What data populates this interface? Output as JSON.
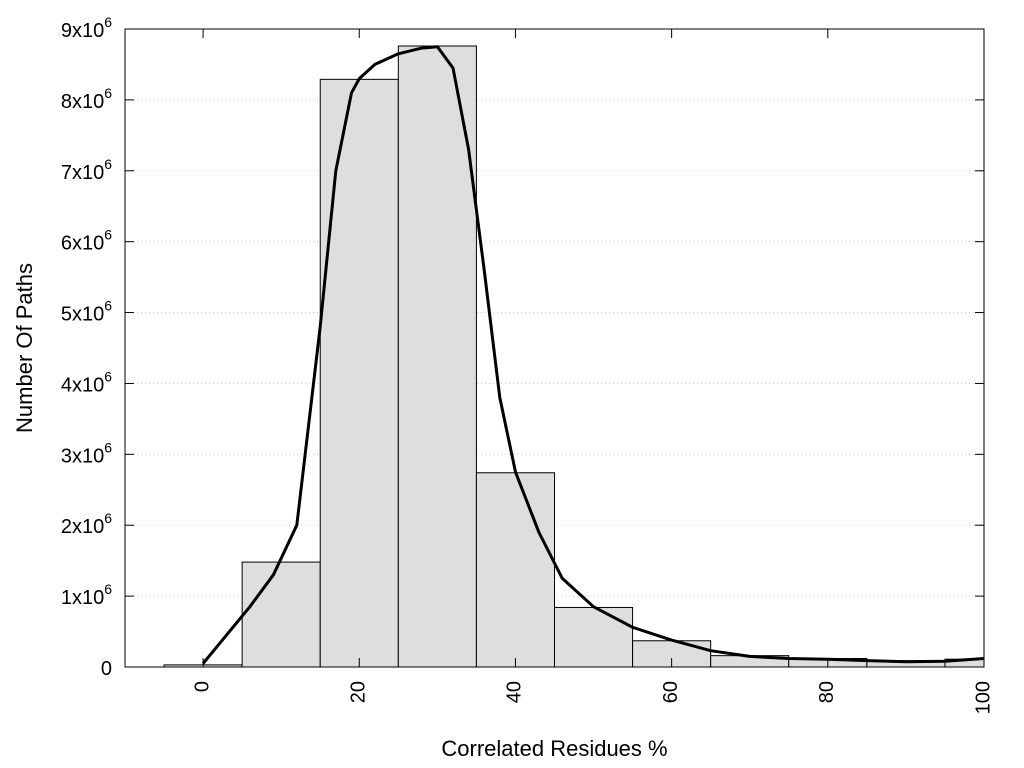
{
  "chart_data": {
    "type": "bar",
    "xlabel": "Correlated Residues %",
    "ylabel": "Number Of Paths",
    "xlim": [
      -10,
      100
    ],
    "ylim": [
      0,
      9000000
    ],
    "grid": true,
    "bins": [
      {
        "center": 0,
        "width": 10,
        "value": 30000
      },
      {
        "center": 10,
        "width": 10,
        "value": 1480000
      },
      {
        "center": 20,
        "width": 10,
        "value": 8290000
      },
      {
        "center": 30,
        "width": 10,
        "value": 8760000
      },
      {
        "center": 40,
        "width": 10,
        "value": 2740000
      },
      {
        "center": 50,
        "width": 10,
        "value": 840000
      },
      {
        "center": 60,
        "width": 10,
        "value": 370000
      },
      {
        "center": 70,
        "width": 10,
        "value": 160000
      },
      {
        "center": 80,
        "width": 10,
        "value": 120000
      },
      {
        "center": 90,
        "width": 10,
        "value": 90000
      },
      {
        "center": 100,
        "width": 10,
        "value": 110000
      }
    ],
    "curve": {
      "x": [
        0,
        3,
        6,
        9,
        12,
        15,
        17,
        19,
        20,
        22,
        25,
        28,
        30,
        32,
        34,
        36,
        38,
        40,
        43,
        46,
        50,
        55,
        60,
        65,
        70,
        75,
        80,
        85,
        90,
        95,
        100
      ],
      "y": [
        50000,
        450000,
        850000,
        1300000,
        2000000,
        4800000,
        7000000,
        8100000,
        8300000,
        8500000,
        8650000,
        8730000,
        8750000,
        8450000,
        7300000,
        5600000,
        3800000,
        2750000,
        1900000,
        1250000,
        850000,
        560000,
        380000,
        230000,
        150000,
        120000,
        110000,
        90000,
        75000,
        80000,
        120000
      ]
    },
    "xticks": [
      0,
      20,
      40,
      60,
      80,
      100
    ],
    "xtick_labels": [
      "0",
      "20",
      "40",
      "60",
      "80",
      "100"
    ],
    "yticks": [
      0,
      1000000,
      2000000,
      3000000,
      4000000,
      5000000,
      6000000,
      7000000,
      8000000,
      9000000
    ],
    "ytick_labels": [
      {
        "base": "0",
        "sup": ""
      },
      {
        "base": "1x10",
        "sup": "6"
      },
      {
        "base": "2x10",
        "sup": "6"
      },
      {
        "base": "3x10",
        "sup": "6"
      },
      {
        "base": "4x10",
        "sup": "6"
      },
      {
        "base": "5x10",
        "sup": "6"
      },
      {
        "base": "6x10",
        "sup": "6"
      },
      {
        "base": "7x10",
        "sup": "6"
      },
      {
        "base": "8x10",
        "sup": "6"
      },
      {
        "base": "9x10",
        "sup": "6"
      }
    ],
    "colors": {
      "bar_fill": "#dedede",
      "bar_stroke": "#000000",
      "curve": "#000000",
      "grid": "#c8c8c8"
    }
  }
}
